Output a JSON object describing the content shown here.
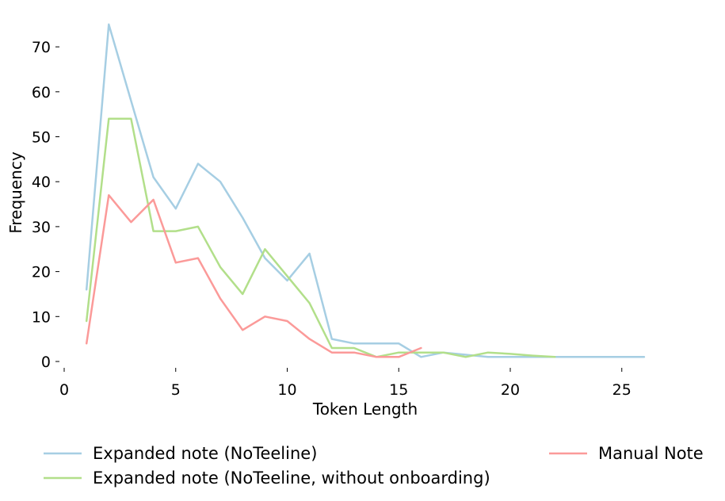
{
  "chart_data": {
    "type": "line",
    "title": "",
    "xlabel": "Token Length",
    "ylabel": "Frequency",
    "xlim": [
      0,
      26
    ],
    "ylim": [
      0,
      75
    ],
    "x_ticks": [
      0,
      5,
      10,
      15,
      20,
      25
    ],
    "y_ticks": [
      0,
      10,
      20,
      30,
      40,
      50,
      60,
      70
    ],
    "grid": false,
    "legend_position": "bottom",
    "series": [
      {
        "name": "Expanded note (NoTeeline)",
        "color": "#a6cee3",
        "x": [
          1,
          2,
          3,
          4,
          5,
          6,
          7,
          8,
          9,
          10,
          11,
          12,
          13,
          14,
          15,
          16,
          17,
          18,
          19,
          20,
          21,
          22,
          23,
          24,
          25,
          26
        ],
        "y": [
          16,
          75,
          58,
          41,
          34,
          44,
          40,
          32,
          23,
          18,
          24,
          5,
          4,
          4,
          4,
          1,
          2,
          1.5,
          1,
          1,
          1,
          1,
          1,
          1,
          1,
          1
        ]
      },
      {
        "name": "Expanded note (NoTeeline, without onboarding)",
        "color": "#b2df8a",
        "x": [
          1,
          2,
          3,
          4,
          5,
          6,
          7,
          8,
          9,
          10,
          11,
          12,
          13,
          14,
          15,
          16,
          17,
          18,
          19,
          20,
          21,
          22
        ],
        "y": [
          9,
          54,
          54,
          29,
          29,
          30,
          21,
          15,
          25,
          19,
          13,
          3,
          3,
          1,
          2,
          2,
          2,
          1,
          2,
          1.7,
          1.3,
          1
        ]
      },
      {
        "name": "Manual Note",
        "color": "#fb9a99",
        "x": [
          1,
          2,
          3,
          4,
          5,
          6,
          7,
          8,
          9,
          10,
          11,
          12,
          13,
          14,
          15,
          16
        ],
        "y": [
          4,
          37,
          31,
          36,
          22,
          23,
          14,
          7,
          10,
          9,
          5,
          2,
          2,
          1,
          1,
          3
        ]
      }
    ]
  }
}
